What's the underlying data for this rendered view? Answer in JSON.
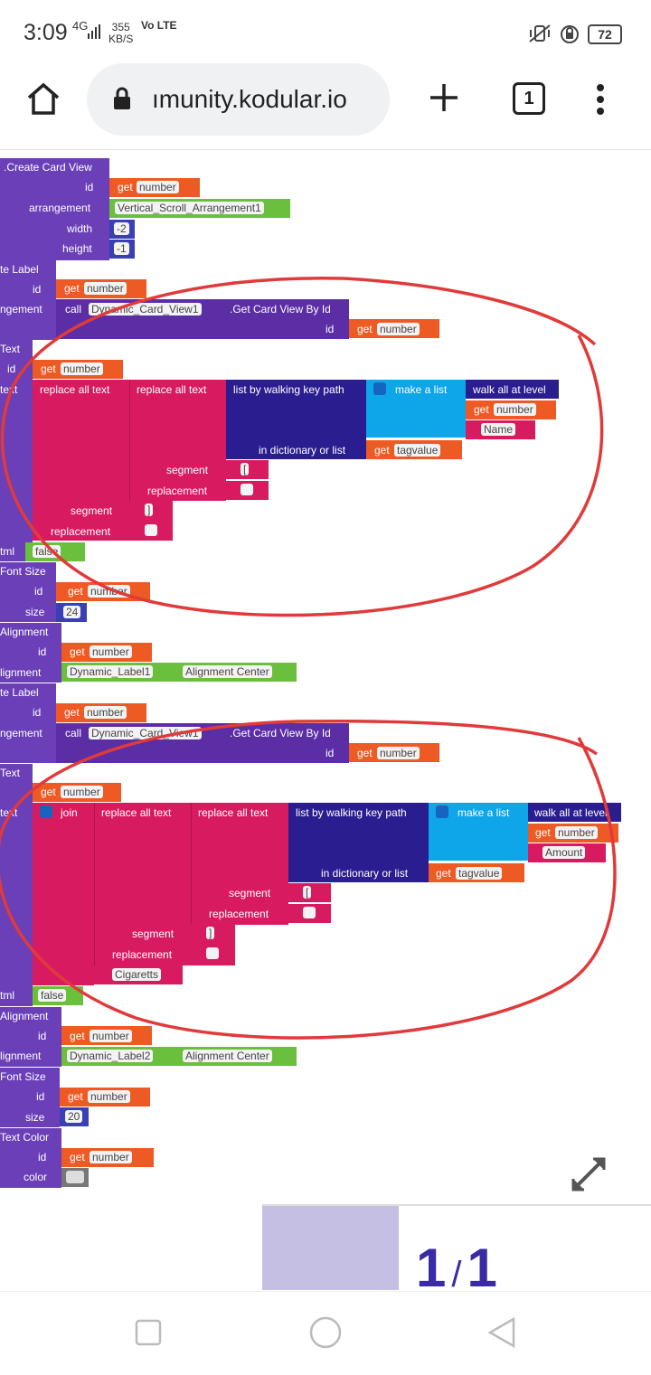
{
  "status_bar": {
    "time": "3:09",
    "network": "4G",
    "speed_value": "355",
    "speed_unit": "KB/S",
    "carrier": "Vo LTE",
    "battery": "72"
  },
  "browser": {
    "url": "ımunity.kodular.io",
    "tab_count": "1"
  },
  "blocks": {
    "create_card_view": ".Create Card View",
    "id": "id",
    "get": "get",
    "number": "number",
    "arrangement": "arrangement",
    "vsa1": "Vertical_Scroll_Arrangement1",
    "width": "width",
    "width_val": "-2",
    "height": "height",
    "height_val": "-1",
    "create_label": "te Label",
    "arrangement_short": "ngement",
    "call": "call",
    "dcv1": "Dynamic_Card_View1",
    "get_card_view_by_id": ".Get Card View By Id",
    "text_block": "Text",
    "text": "text",
    "replace_all_text": "replace all text",
    "list_by_walking": "list by walking key path",
    "make_a_list": "make a list",
    "walk_all": "walk all at level",
    "name_str": "Name",
    "in_dict": "in dictionary or list",
    "tagvalue": "tagvalue",
    "segment": "segment",
    "replacement": "replacement",
    "seg_open": "[",
    "seg_close": "]",
    "html": "tml",
    "false": "false",
    "font_size": "Font Size",
    "size": "size",
    "size_24": "24",
    "alignment_block": "Alignment",
    "alignment": "lignment",
    "dl1": "Dynamic_Label1",
    "align_center": "Alignment Center",
    "join": "join",
    "amount_str": "Amount",
    "cigaretts": "Cigaretts",
    "dl2": "Dynamic_Label2",
    "size_20": "20",
    "text_color": "Text Color",
    "color": "color"
  },
  "counter": {
    "current": "1",
    "slash": "/",
    "total": "1"
  },
  "colors": {
    "accent": "#3b2aa6",
    "annotation": "#e03a3a"
  }
}
